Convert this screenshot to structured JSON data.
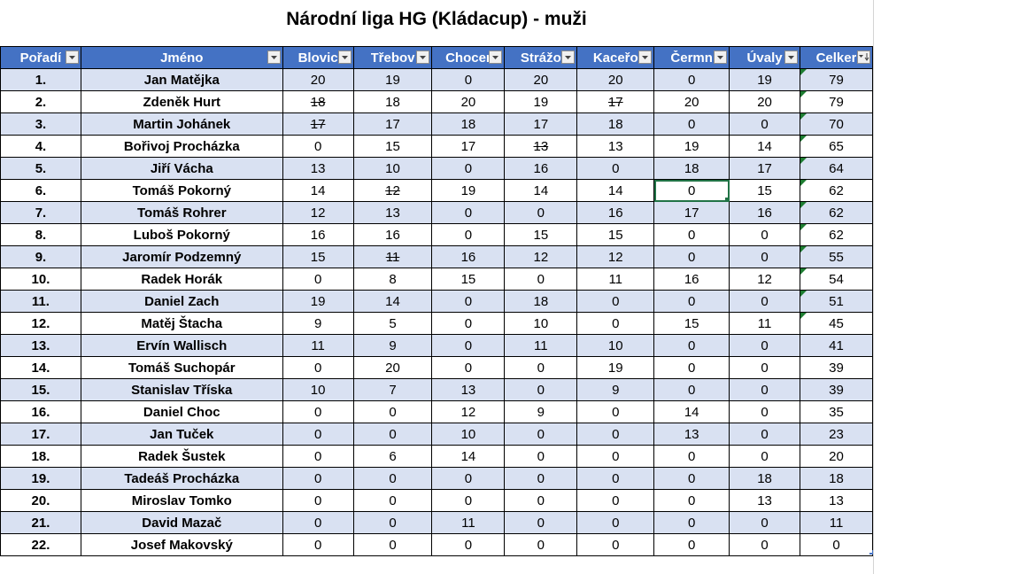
{
  "title": "Národní liga HG (Kládacup) - muži",
  "columns": [
    "Pořadí",
    "Jméno",
    "Blovic",
    "Třebov",
    "Chocer",
    "Strážo",
    "Kaceřo",
    "Čermn",
    "Úvaly",
    "Celker"
  ],
  "rows": [
    {
      "rank": "1.",
      "name": "Jan Matějka",
      "scores": [
        "20",
        "19",
        "0",
        "20",
        "20",
        "0",
        "19"
      ],
      "total": "79"
    },
    {
      "rank": "2.",
      "name": "Zdeněk Hurt",
      "scores": [
        "18",
        "18",
        "20",
        "19",
        "17",
        "20",
        "20"
      ],
      "total": "79"
    },
    {
      "rank": "3.",
      "name": "Martin Johánek",
      "scores": [
        "17",
        "17",
        "18",
        "17",
        "18",
        "0",
        "0"
      ],
      "total": "70"
    },
    {
      "rank": "4.",
      "name": "Bořivoj Procházka",
      "scores": [
        "0",
        "15",
        "17",
        "13",
        "13",
        "19",
        "14"
      ],
      "total": "65"
    },
    {
      "rank": "5.",
      "name": "Jiří Vácha",
      "scores": [
        "13",
        "10",
        "0",
        "16",
        "0",
        "18",
        "17"
      ],
      "total": "64"
    },
    {
      "rank": "6.",
      "name": "Tomáš Pokorný",
      "scores": [
        "14",
        "12",
        "19",
        "14",
        "14",
        "0",
        "15"
      ],
      "total": "62"
    },
    {
      "rank": "7.",
      "name": "Tomáš Rohrer",
      "scores": [
        "12",
        "13",
        "0",
        "0",
        "16",
        "17",
        "16"
      ],
      "total": "62"
    },
    {
      "rank": "8.",
      "name": "Luboš Pokorný",
      "scores": [
        "16",
        "16",
        "0",
        "15",
        "15",
        "0",
        "0"
      ],
      "total": "62"
    },
    {
      "rank": "9.",
      "name": "Jaromír Podzemný",
      "scores": [
        "15",
        "11",
        "16",
        "12",
        "12",
        "0",
        "0"
      ],
      "total": "55"
    },
    {
      "rank": "10.",
      "name": "Radek Horák",
      "scores": [
        "0",
        "8",
        "15",
        "0",
        "11",
        "16",
        "12"
      ],
      "total": "54"
    },
    {
      "rank": "11.",
      "name": "Daniel Zach",
      "scores": [
        "19",
        "14",
        "0",
        "18",
        "0",
        "0",
        "0"
      ],
      "total": "51"
    },
    {
      "rank": "12.",
      "name": "Matěj Štacha",
      "scores": [
        "9",
        "5",
        "0",
        "10",
        "0",
        "15",
        "11"
      ],
      "total": "45"
    },
    {
      "rank": "13.",
      "name": "Ervín Wallisch",
      "scores": [
        "11",
        "9",
        "0",
        "11",
        "10",
        "0",
        "0"
      ],
      "total": "41"
    },
    {
      "rank": "14.",
      "name": "Tomáš Suchopár",
      "scores": [
        "0",
        "20",
        "0",
        "0",
        "19",
        "0",
        "0"
      ],
      "total": "39"
    },
    {
      "rank": "15.",
      "name": "Stanislav Tříska",
      "scores": [
        "10",
        "7",
        "13",
        "0",
        "9",
        "0",
        "0"
      ],
      "total": "39"
    },
    {
      "rank": "16.",
      "name": "Daniel Choc",
      "scores": [
        "0",
        "0",
        "12",
        "9",
        "0",
        "14",
        "0"
      ],
      "total": "35"
    },
    {
      "rank": "17.",
      "name": "Jan Tuček",
      "scores": [
        "0",
        "0",
        "10",
        "0",
        "0",
        "13",
        "0"
      ],
      "total": "23"
    },
    {
      "rank": "18.",
      "name": "Radek Šustek",
      "scores": [
        "0",
        "6",
        "14",
        "0",
        "0",
        "0",
        "0"
      ],
      "total": "20"
    },
    {
      "rank": "19.",
      "name": "Tadeáš Procházka",
      "scores": [
        "0",
        "0",
        "0",
        "0",
        "0",
        "0",
        "18"
      ],
      "total": "18"
    },
    {
      "rank": "20.",
      "name": "Miroslav Tomko",
      "scores": [
        "0",
        "0",
        "0",
        "0",
        "0",
        "0",
        "13"
      ],
      "total": "13"
    },
    {
      "rank": "21.",
      "name": "David Mazač",
      "scores": [
        "0",
        "0",
        "11",
        "0",
        "0",
        "0",
        "0"
      ],
      "total": "11"
    },
    {
      "rank": "22.",
      "name": "Josef Makovský",
      "scores": [
        "0",
        "0",
        "0",
        "0",
        "0",
        "0",
        "0"
      ],
      "total": "0"
    }
  ],
  "struck_cells": [
    [
      1,
      0
    ],
    [
      1,
      4
    ],
    [
      2,
      0
    ],
    [
      3,
      3
    ],
    [
      5,
      1
    ],
    [
      8,
      1
    ]
  ],
  "red_cells": [
    [
      3,
      4
    ],
    [
      4,
      1
    ],
    [
      5,
      0
    ],
    [
      6,
      0
    ],
    [
      9,
      1
    ],
    [
      11,
      1
    ]
  ],
  "selected_cell": [
    5,
    5
  ],
  "comment_marker_rows": [
    0,
    1,
    2,
    3,
    4,
    5,
    6,
    7,
    8,
    9,
    10,
    11
  ],
  "colors": {
    "header": "#4472c4",
    "band": "#d9e1f2",
    "red": "#e00000",
    "selection": "#217346",
    "marker": "#1e7d32"
  }
}
